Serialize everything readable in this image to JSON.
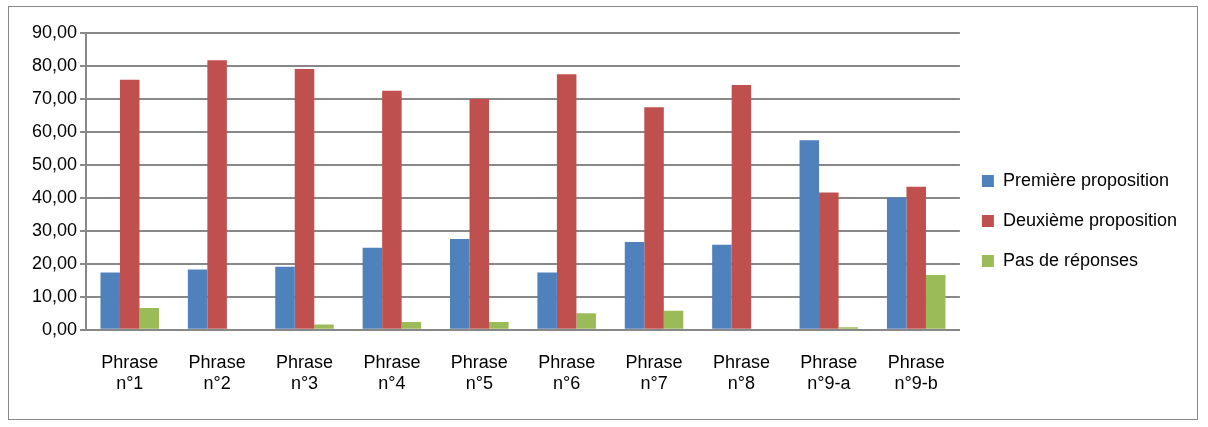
{
  "chart_data": {
    "type": "bar",
    "categories": [
      "Phrase n°1",
      "Phrase n°2",
      "Phrase n°3",
      "Phrase n°4",
      "Phrase n°5",
      "Phrase n°6",
      "Phrase n°7",
      "Phrase n°8",
      "Phrase n°9-a",
      "Phrase n°9-b"
    ],
    "series": [
      {
        "name": "Première proposition",
        "color": "#4f81bd",
        "values": [
          17.4,
          18.3,
          19.1,
          24.9,
          27.5,
          17.4,
          26.6,
          25.8,
          57.5,
          40.1
        ]
      },
      {
        "name": "Deuxième proposition",
        "color": "#c0504d",
        "values": [
          75.8,
          81.7,
          79.1,
          72.5,
          70.0,
          77.5,
          67.5,
          74.2,
          41.6,
          43.4
        ]
      },
      {
        "name": "Pas de réponses",
        "color": "#9bbb59",
        "values": [
          6.6,
          0,
          1.6,
          2.4,
          2.4,
          5.0,
          5.8,
          0,
          0.8,
          16.6
        ]
      }
    ],
    "ylim": [
      0,
      90
    ],
    "yticks": [
      {
        "value": 0,
        "label": "0,00"
      },
      {
        "value": 10,
        "label": "10,00"
      },
      {
        "value": 20,
        "label": "20,00"
      },
      {
        "value": 30,
        "label": "30,00"
      },
      {
        "value": 40,
        "label": "40,00"
      },
      {
        "value": 50,
        "label": "50,00"
      },
      {
        "value": 60,
        "label": "60,00"
      },
      {
        "value": 70,
        "label": "70,00"
      },
      {
        "value": 80,
        "label": "80,00"
      },
      {
        "value": 90,
        "label": "90,00"
      }
    ],
    "grid": "y",
    "legend": "right"
  }
}
